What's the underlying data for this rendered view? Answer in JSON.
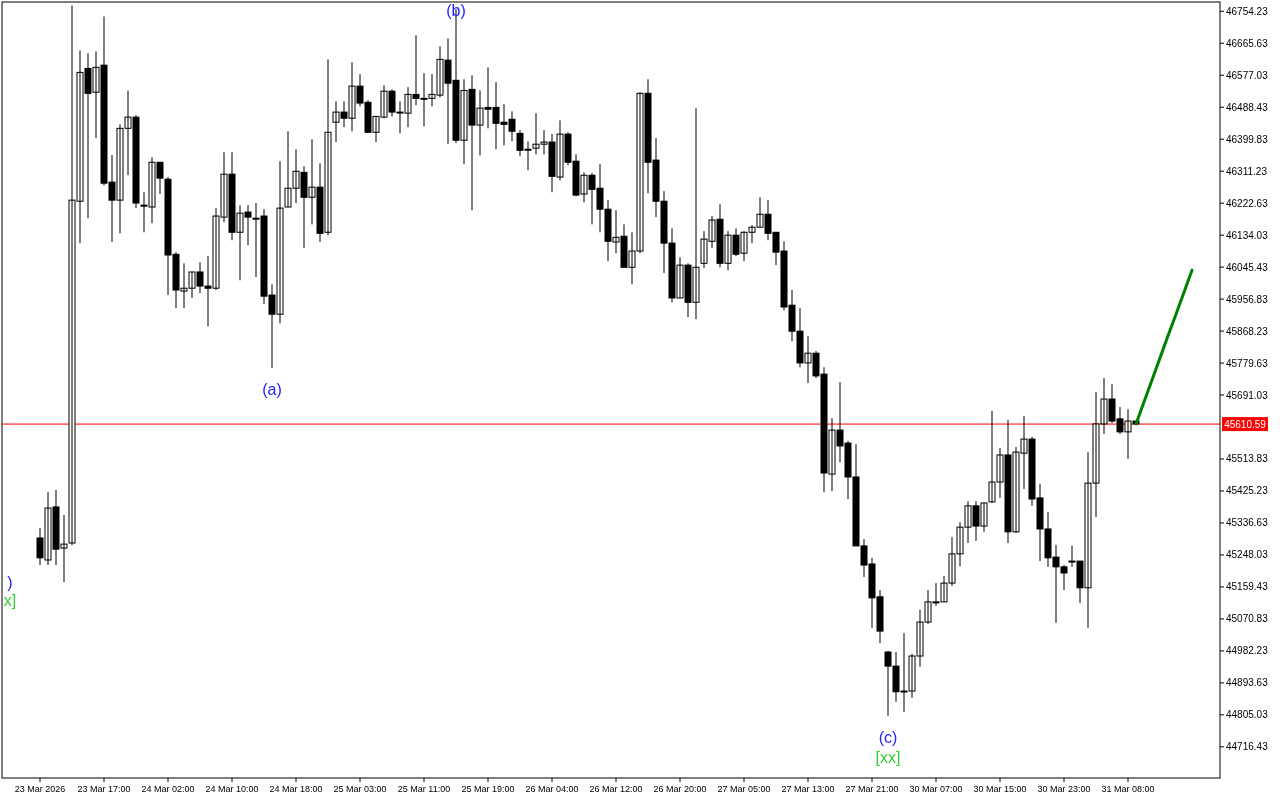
{
  "chart_data": {
    "type": "candlestick",
    "categories": [
      "23 Mar 2026",
      null,
      null,
      null,
      null,
      null,
      null,
      null,
      "23 Mar 17:00",
      null,
      null,
      null,
      null,
      null,
      null,
      null,
      "24 Mar 02:00",
      null,
      null,
      null,
      null,
      null,
      null,
      null,
      "24 Mar 10:00",
      null,
      null,
      null,
      null,
      null,
      null,
      null,
      "24 Mar 18:00",
      null,
      null,
      null,
      null,
      null,
      null,
      null,
      "25 Mar 03:00",
      null,
      null,
      null,
      null,
      null,
      null,
      null,
      "25 Mar 11:00",
      null,
      null,
      null,
      null,
      null,
      null,
      null,
      "25 Mar 19:00",
      null,
      null,
      null,
      null,
      null,
      null,
      null,
      "26 Mar 04:00",
      null,
      null,
      null,
      null,
      null,
      null,
      null,
      "26 Mar 12:00",
      null,
      null,
      null,
      null,
      null,
      null,
      null,
      "26 Mar 20:00",
      null,
      null,
      null,
      null,
      null,
      null,
      null,
      "27 Mar 05:00",
      null,
      null,
      null,
      null,
      null,
      null,
      null,
      "27 Mar 13:00",
      null,
      null,
      null,
      null,
      null,
      null,
      null,
      "27 Mar 21:00",
      null,
      null,
      null,
      null,
      null,
      null,
      null,
      "30 Mar 07:00",
      null,
      null,
      null,
      null,
      null,
      null,
      null,
      "30 Mar 15:00",
      null,
      null,
      null,
      null,
      null,
      null,
      null,
      "30 Mar 23:00",
      null,
      null,
      null,
      null,
      null,
      null,
      null,
      "31 Mar 08:00",
      null,
      null,
      null,
      null,
      null,
      null,
      null,
      null
    ],
    "ohlc": [
      [
        45295,
        45323,
        45220,
        45240
      ],
      [
        45234,
        45422,
        45220,
        45378
      ],
      [
        45381,
        45428,
        45220,
        45264
      ],
      [
        45267,
        45359,
        45173,
        45278
      ],
      [
        45281,
        46770,
        45275,
        46231
      ],
      [
        46228,
        46646,
        46112,
        46585
      ],
      [
        46596,
        46638,
        46181,
        46527
      ],
      [
        46530,
        46643,
        46403,
        46599
      ],
      [
        46605,
        46740,
        46272,
        46278
      ],
      [
        46281,
        46356,
        46115,
        46231
      ],
      [
        46231,
        46441,
        46139,
        46430
      ],
      [
        46430,
        46535,
        46300,
        46461
      ],
      [
        46461,
        46466,
        46209,
        46223
      ],
      [
        46217,
        46253,
        46142,
        46217
      ],
      [
        46212,
        46350,
        46167,
        46336
      ],
      [
        46336,
        46336,
        46248,
        46292
      ],
      [
        46289,
        46295,
        45968,
        46079
      ],
      [
        46081,
        46087,
        45932,
        45982
      ],
      [
        45979,
        46056,
        45932,
        45987
      ],
      [
        45987,
        46032,
        45960,
        46032
      ],
      [
        46032,
        46059,
        45973,
        45993
      ],
      [
        45993,
        46076,
        45882,
        45987
      ],
      [
        45987,
        46209,
        45982,
        46187
      ],
      [
        46184,
        46364,
        46170,
        46303
      ],
      [
        46303,
        46364,
        46120,
        46142
      ],
      [
        46142,
        46217,
        46009,
        46195
      ],
      [
        46198,
        46217,
        46106,
        46184
      ],
      [
        46181,
        46223,
        46018,
        46181
      ],
      [
        46187,
        46206,
        45943,
        45965
      ],
      [
        45968,
        45998,
        45766,
        45915
      ],
      [
        45915,
        46339,
        45890,
        46209
      ],
      [
        46212,
        46422,
        46212,
        46264
      ],
      [
        46264,
        46372,
        46223,
        46311
      ],
      [
        46308,
        46325,
        46098,
        46239
      ],
      [
        46239,
        46400,
        46164,
        46267
      ],
      [
        46267,
        46333,
        46115,
        46139
      ],
      [
        46142,
        46621,
        46134,
        46419
      ],
      [
        46447,
        46505,
        46392,
        46475
      ],
      [
        46475,
        46505,
        46433,
        46458
      ],
      [
        46458,
        46613,
        46422,
        46547
      ],
      [
        46547,
        46580,
        46491,
        46500
      ],
      [
        46502,
        46508,
        46419,
        46419
      ],
      [
        46419,
        46463,
        46392,
        46463
      ],
      [
        46461,
        46549,
        46458,
        46533
      ],
      [
        46533,
        46538,
        46463,
        46475
      ],
      [
        46475,
        46505,
        46416,
        46475
      ],
      [
        46472,
        46544,
        46433,
        46524
      ],
      [
        46524,
        46688,
        46494,
        46513
      ],
      [
        46513,
        46583,
        46436,
        46513
      ],
      [
        46513,
        46580,
        46491,
        46524
      ],
      [
        46522,
        46657,
        46516,
        46621
      ],
      [
        46619,
        46679,
        46386,
        46555
      ],
      [
        46563,
        46760,
        46389,
        46397
      ],
      [
        46397,
        46566,
        46331,
        46535
      ],
      [
        46538,
        46577,
        46203,
        46439
      ],
      [
        46439,
        46535,
        46355,
        46486
      ],
      [
        46488,
        46599,
        46430,
        46483
      ],
      [
        46488,
        46558,
        46372,
        46444
      ],
      [
        46447,
        46497,
        46383,
        46441
      ],
      [
        46455,
        46477,
        46394,
        46422
      ],
      [
        46416,
        46425,
        46353,
        46369
      ],
      [
        46372,
        46394,
        46314,
        46372
      ],
      [
        46375,
        46472,
        46358,
        46386
      ],
      [
        46386,
        46425,
        46358,
        46392
      ],
      [
        46392,
        46414,
        46253,
        46297
      ],
      [
        46295,
        46452,
        46286,
        46414
      ],
      [
        46414,
        46419,
        46328,
        46336
      ],
      [
        46339,
        46358,
        46242,
        46245
      ],
      [
        46248,
        46308,
        46225,
        46300
      ],
      [
        46300,
        46306,
        46164,
        46261
      ],
      [
        46264,
        46331,
        46142,
        46206
      ],
      [
        46206,
        46231,
        46062,
        46117
      ],
      [
        46115,
        46203,
        46084,
        46128
      ],
      [
        46131,
        46164,
        46045,
        46045
      ],
      [
        46045,
        46142,
        45998,
        46090
      ],
      [
        46090,
        46530,
        46084,
        46527
      ],
      [
        46527,
        46566,
        46250,
        46336
      ],
      [
        46342,
        46403,
        46184,
        46228
      ],
      [
        46228,
        46256,
        46029,
        46112
      ],
      [
        46112,
        46153,
        45948,
        45960
      ],
      [
        45960,
        46073,
        45960,
        46051
      ],
      [
        46051,
        46056,
        45907,
        45948
      ],
      [
        45948,
        46486,
        45901,
        46045
      ],
      [
        46056,
        46145,
        46043,
        46123
      ],
      [
        46117,
        46187,
        46098,
        46176
      ],
      [
        46178,
        46220,
        46045,
        46056
      ],
      [
        46056,
        46145,
        46037,
        46134
      ],
      [
        46134,
        46153,
        46076,
        46081
      ],
      [
        46084,
        46145,
        46062,
        46142
      ],
      [
        46142,
        46162,
        46112,
        46156
      ],
      [
        46156,
        46239,
        46156,
        46192
      ],
      [
        46192,
        46231,
        46120,
        46139
      ],
      [
        46142,
        46142,
        46051,
        46087
      ],
      [
        46090,
        46117,
        45926,
        45935
      ],
      [
        45940,
        45982,
        45840,
        45868
      ],
      [
        45868,
        45932,
        45768,
        45780
      ],
      [
        45780,
        45854,
        45724,
        45807
      ],
      [
        45807,
        45813,
        45738,
        45744
      ],
      [
        45749,
        45768,
        45422,
        45475
      ],
      [
        45472,
        45627,
        45425,
        45594
      ],
      [
        45594,
        45727,
        45505,
        45550
      ],
      [
        45558,
        45564,
        45403,
        45464
      ],
      [
        45464,
        45555,
        45273,
        45273
      ],
      [
        45273,
        45292,
        45187,
        45220
      ],
      [
        45223,
        45240,
        45046,
        45129
      ],
      [
        45132,
        45151,
        45004,
        45037
      ],
      [
        44979,
        44982,
        44802,
        44940
      ],
      [
        44940,
        44979,
        44841,
        44869
      ],
      [
        44871,
        45032,
        44813,
        44871
      ],
      [
        44871,
        44974,
        44852,
        44968
      ],
      [
        44968,
        45096,
        44938,
        45062
      ],
      [
        45062,
        45151,
        45057,
        45118
      ],
      [
        45118,
        45170,
        45107,
        45118
      ],
      [
        45118,
        45190,
        45118,
        45170
      ],
      [
        45170,
        45298,
        45162,
        45251
      ],
      [
        45251,
        45339,
        45217,
        45325
      ],
      [
        45325,
        45397,
        45281,
        45384
      ],
      [
        45384,
        45397,
        45287,
        45328
      ],
      [
        45328,
        45392,
        45312,
        45392
      ],
      [
        45395,
        45647,
        45392,
        45450
      ],
      [
        45450,
        45544,
        45406,
        45525
      ],
      [
        45525,
        45622,
        45281,
        45312
      ],
      [
        45312,
        45547,
        45309,
        45533
      ],
      [
        45530,
        45633,
        45431,
        45569
      ],
      [
        45569,
        45575,
        45384,
        45403
      ],
      [
        45406,
        45445,
        45231,
        45320
      ],
      [
        45320,
        45367,
        45215,
        45240
      ],
      [
        45242,
        45276,
        45060,
        45215
      ],
      [
        45215,
        45220,
        45151,
        45198
      ],
      [
        45231,
        45273,
        45215,
        45231
      ],
      [
        45231,
        45231,
        45115,
        45157
      ],
      [
        45157,
        45533,
        45046,
        45447
      ],
      [
        45447,
        45699,
        45353,
        45611
      ],
      [
        45611,
        45738,
        45583,
        45680
      ],
      [
        45680,
        45721,
        45613,
        45619
      ],
      [
        45625,
        45658,
        45583,
        45589
      ],
      [
        45589,
        45652,
        45514,
        45619
      ],
      [
        45619,
        45619,
        45608,
        45611
      ],
      null,
      null,
      null,
      null,
      null,
      null,
      null
    ],
    "series": [
      {
        "type": "line",
        "color": "#008000",
        "values": [
          null,
          null,
          null,
          null,
          null,
          null,
          null,
          null,
          null,
          null,
          null,
          null,
          null,
          null,
          null,
          null,
          null,
          null,
          null,
          null,
          null,
          null,
          null,
          null,
          null,
          null,
          null,
          null,
          null,
          null,
          null,
          null,
          null,
          null,
          null,
          null,
          null,
          null,
          null,
          null,
          null,
          null,
          null,
          null,
          null,
          null,
          null,
          null,
          null,
          null,
          null,
          null,
          null,
          null,
          null,
          null,
          null,
          null,
          null,
          null,
          null,
          null,
          null,
          null,
          null,
          null,
          null,
          null,
          null,
          null,
          null,
          null,
          null,
          null,
          null,
          null,
          null,
          null,
          null,
          null,
          null,
          null,
          null,
          null,
          null,
          null,
          null,
          null,
          null,
          null,
          null,
          null,
          null,
          null,
          null,
          null,
          null,
          null,
          null,
          null,
          null,
          null,
          null,
          null,
          null,
          null,
          null,
          null,
          null,
          null,
          null,
          null,
          null,
          null,
          null,
          null,
          null,
          null,
          null,
          null,
          null,
          null,
          null,
          null,
          null,
          null,
          null,
          null,
          null,
          null,
          null,
          null,
          null,
          null,
          null,
          null,
          null,
          45611,
          45672,
          45733,
          45794,
          45855,
          45915,
          45976,
          46037
        ]
      }
    ],
    "ylim": [
      44630,
      46780
    ],
    "yticks": [
      44716.43,
      44805.03,
      44893.63,
      44982.23,
      45070.83,
      45159.43,
      45248.03,
      45336.63,
      45425.23,
      45513.83,
      45691.03,
      45779.63,
      45868.23,
      45956.83,
      46045.43,
      46134.03,
      46222.63,
      46311.23,
      46399.83,
      46488.43,
      46577.03,
      46665.63,
      46754.23
    ],
    "ref_lines": [
      {
        "axis": "y",
        "value": 45610.59,
        "label": "45610.59",
        "color": "#ff0000"
      }
    ],
    "annotations": [
      {
        "text": "(a)",
        "y": 45766
      },
      {
        "text": "(b)",
        "y": 46760
      },
      {
        "text": "(c)",
        "y": 44802
      },
      {
        "text": "[xx]",
        "y": 44802
      },
      ")",
      "x]"
    ],
    "grid": false
  }
}
